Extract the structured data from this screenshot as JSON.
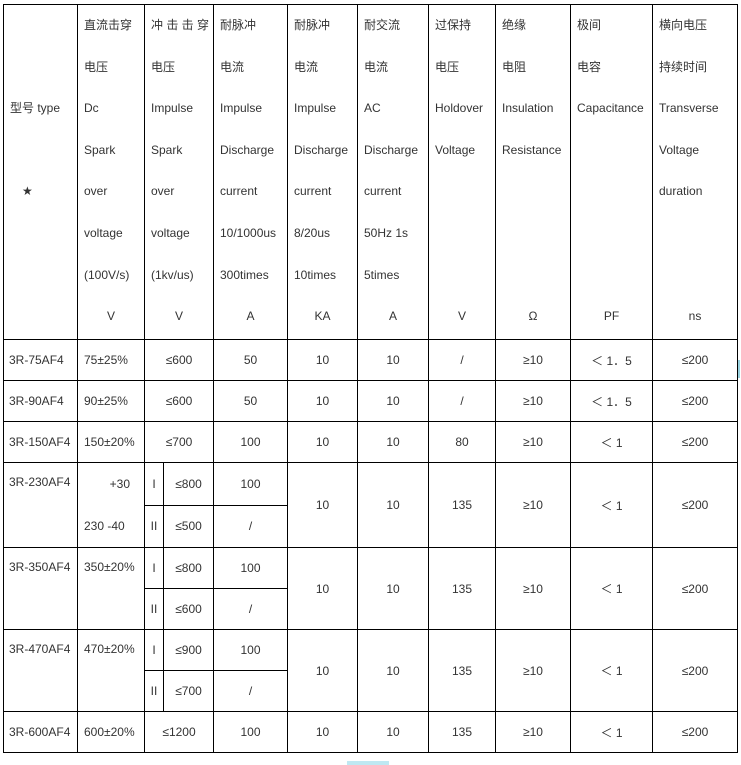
{
  "header": {
    "model": {
      "lines": [
        "",
        "",
        "型号 type",
        "",
        "★",
        "",
        "",
        ""
      ],
      "unit": ""
    },
    "columns": [
      {
        "key": "dc",
        "lines": [
          "直流击穿",
          "电压",
          "Dc",
          "Spark",
          "over",
          "voltage",
          "(100V/s)"
        ],
        "unit": "V"
      },
      {
        "key": "impulse",
        "lines": [
          "冲 击 击 穿",
          "电压",
          "Impulse",
          "Spark",
          "over",
          "voltage",
          "(1kv/us)"
        ],
        "unit": "V"
      },
      {
        "key": "impulse_discharge_long",
        "lines": [
          "耐脉冲",
          "电流",
          "Impulse",
          "Discharge",
          "current",
          "10/1000us",
          "300times"
        ],
        "unit": "A"
      },
      {
        "key": "impulse_discharge_short",
        "lines": [
          "耐脉冲",
          "电流",
          "Impulse",
          "Discharge",
          "current",
          " 8/20us",
          "10times"
        ],
        "unit": "KA"
      },
      {
        "key": "ac_discharge",
        "lines": [
          "耐交流",
          "电流",
          "AC",
          "Discharge",
          "current",
          "50Hz 1s",
          "5times"
        ],
        "unit": "A"
      },
      {
        "key": "holdover",
        "lines": [
          "过保持",
          "电压",
          "Holdover",
          "  Voltage",
          "",
          "",
          ""
        ],
        "unit": "V"
      },
      {
        "key": "insulation",
        "lines": [
          "绝缘",
          "电阻",
          "Insulation",
          "Resistance",
          "",
          "",
          ""
        ],
        "unit": "Ω"
      },
      {
        "key": "capacitance",
        "lines": [
          "极间",
          "电容",
          "Capacitance",
          "",
          "",
          "",
          ""
        ],
        "unit": "PF"
      },
      {
        "key": "transverse",
        "lines": [
          "横向电压",
          "持续时间",
          "Transverse",
          "Voltage",
          "duration",
          "",
          ""
        ],
        "unit": "ns"
      }
    ]
  },
  "rows": [
    {
      "model": "3R-75AF4",
      "dc": "75±25%",
      "impulse": "≤600",
      "impulse_discharge_long": "50",
      "impulse_discharge_short": "10",
      "ac_discharge": "10",
      "holdover": "/",
      "insulation": "≥10",
      "capacitance": "＜ 1．5",
      "transverse": "≤200"
    },
    {
      "model": "3R-90AF4",
      "dc": "90±25%",
      "impulse": "≤600",
      "impulse_discharge_long": "50",
      "impulse_discharge_short": "10",
      "ac_discharge": "10",
      "holdover": "/",
      "insulation": "≥10",
      "capacitance": "＜ 1．5",
      "transverse": "≤200"
    },
    {
      "model": "3R-150AF4",
      "dc": "150±20%",
      "impulse": "≤700",
      "impulse_discharge_long": "100",
      "impulse_discharge_short": "10",
      "ac_discharge": "10",
      "holdover": "80",
      "insulation": "≥10",
      "capacitance": "＜ 1",
      "transverse": "≤200"
    },
    {
      "model": "3R-230AF4",
      "dc_top": "+30",
      "dc_bottom": "230   -40",
      "grades": [
        {
          "grade": "I",
          "impulse": "≤800",
          "impulse_discharge_long": "100"
        },
        {
          "grade": "II",
          "impulse": "≤500",
          "impulse_discharge_long": "/"
        }
      ],
      "impulse_discharge_short": "10",
      "ac_discharge": "10",
      "holdover": "135",
      "insulation": "≥10",
      "capacitance": "＜ 1",
      "transverse": "≤200"
    },
    {
      "model": "3R-350AF4",
      "dc": "350±20%",
      "grades": [
        {
          "grade": "I",
          "impulse": "≤800",
          "impulse_discharge_long": "100"
        },
        {
          "grade": "II",
          "impulse": "≤600",
          "impulse_discharge_long": "/"
        }
      ],
      "impulse_discharge_short": "10",
      "ac_discharge": "10",
      "holdover": "135",
      "insulation": "≥10",
      "capacitance": "＜ 1",
      "transverse": "≤200"
    },
    {
      "model": "3R-470AF4",
      "dc": "470±20%",
      "grades": [
        {
          "grade": "I",
          "impulse": "≤900",
          "impulse_discharge_long": "100"
        },
        {
          "grade": "II",
          "impulse": "≤700",
          "impulse_discharge_long": "/"
        }
      ],
      "impulse_discharge_short": "10",
      "ac_discharge": "10",
      "holdover": "135",
      "insulation": "≥10",
      "capacitance": "＜ 1",
      "transverse": "≤200"
    },
    {
      "model": "3R-600AF4",
      "dc": "600±20%",
      "impulse": "≤1200",
      "impulse_discharge_long": "100",
      "impulse_discharge_short": "10",
      "ac_discharge": "10",
      "holdover": "135",
      "insulation": "≥10",
      "capacitance": "＜ 1",
      "transverse": "≤200"
    }
  ]
}
